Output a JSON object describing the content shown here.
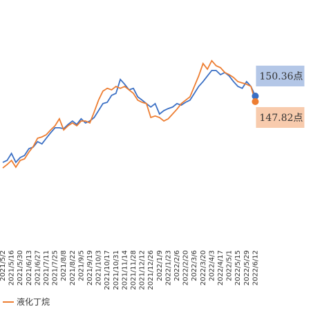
{
  "chart_data": {
    "type": "line",
    "categories": [
      "2021/5/2",
      null,
      "2021/5/16",
      null,
      "2021/5/30",
      null,
      "2021/6/13",
      null,
      "2021/6/27",
      null,
      "2021/7/11",
      null,
      "2021/7/25",
      null,
      "2021/8/8",
      null,
      "2021/8/22",
      null,
      "2021/9/5",
      null,
      "2021/9/19",
      null,
      "2021/10/3",
      null,
      "2021/10/17",
      null,
      "2021/10/31",
      null,
      "2021/11/14",
      null,
      "2021/11/28",
      null,
      "2021/12/12",
      null,
      "2021/12/26",
      null,
      "2022/1/9",
      null,
      "2022/1/23",
      null,
      "2022/2/6",
      null,
      "2022/2/20",
      null,
      "2022/3/6",
      null,
      "2022/3/20",
      null,
      "2022/4/3",
      null,
      "2022/4/17",
      null,
      "2022/5/1",
      null,
      "2022/5/15",
      null,
      "2022/5/29",
      null,
      "2022/6/12"
    ],
    "series": [
      {
        "color": "#3a6fc4",
        "label_fill": "#b4c7e7",
        "values": [
          119.9,
          120.8,
          124.0,
          119.9,
          122.1,
          123.1,
          126.2,
          126.9,
          129.4,
          128.4,
          131.0,
          133.5,
          135.8,
          135.8,
          135.4,
          137.3,
          138.9,
          137.3,
          139.9,
          138.0,
          138.9,
          140.5,
          143.7,
          146.9,
          147.5,
          150.7,
          151.6,
          158.0,
          155.8,
          153.2,
          153.9,
          150.0,
          148.5,
          146.9,
          145.3,
          146.9,
          142.1,
          143.7,
          144.6,
          145.3,
          146.9,
          146.2,
          147.5,
          148.5,
          151.6,
          154.8,
          157.0,
          159.6,
          162.1,
          162.1,
          160.2,
          161.2,
          159.6,
          157.0,
          154.8,
          153.9,
          157.0,
          154.8,
          150.36
        ],
        "value_labels": [
          null,
          null,
          null,
          null,
          null,
          null,
          null,
          null,
          null,
          null,
          null,
          null,
          null,
          null,
          null,
          null,
          null,
          null,
          null,
          null,
          null,
          null,
          null,
          null,
          null,
          null,
          null,
          null,
          null,
          null,
          null,
          null,
          null,
          null,
          null,
          null,
          null,
          null,
          null,
          null,
          null,
          null,
          null,
          null,
          null,
          null,
          null,
          null,
          null,
          null,
          null,
          null,
          null,
          null,
          null,
          null,
          null,
          null,
          "150.36点"
        ]
      },
      {
        "name": "液化丁烷",
        "color": "#ed7d31",
        "label_fill": "#f8cbad",
        "values": [
          117.3,
          118.9,
          120.8,
          117.7,
          120.8,
          121.5,
          124.6,
          127.2,
          131.0,
          131.6,
          132.6,
          134.8,
          136.7,
          139.9,
          134.8,
          136.7,
          138.0,
          136.7,
          138.9,
          138.9,
          138.0,
          143.1,
          148.5,
          152.6,
          153.9,
          153.2,
          154.8,
          153.9,
          154.8,
          153.2,
          151.6,
          148.5,
          147.5,
          146.9,
          140.5,
          141.2,
          140.5,
          138.9,
          139.9,
          142.1,
          144.3,
          146.9,
          148.5,
          150.0,
          154.8,
          159.6,
          165.3,
          162.7,
          166.6,
          164.3,
          163.4,
          161.2,
          160.2,
          158.9,
          157.0,
          156.4,
          155.8,
          154.8,
          147.82
        ],
        "value_labels": [
          null,
          null,
          null,
          null,
          null,
          null,
          null,
          null,
          null,
          null,
          null,
          null,
          null,
          null,
          null,
          null,
          null,
          null,
          null,
          null,
          null,
          null,
          null,
          null,
          null,
          null,
          null,
          null,
          null,
          null,
          null,
          null,
          null,
          null,
          null,
          null,
          null,
          null,
          null,
          null,
          null,
          null,
          null,
          null,
          null,
          null,
          null,
          null,
          null,
          null,
          null,
          null,
          null,
          null,
          null,
          null,
          null,
          null,
          "147.82点"
        ]
      }
    ],
    "ylim": [
      80.19,
      194.49
    ]
  }
}
